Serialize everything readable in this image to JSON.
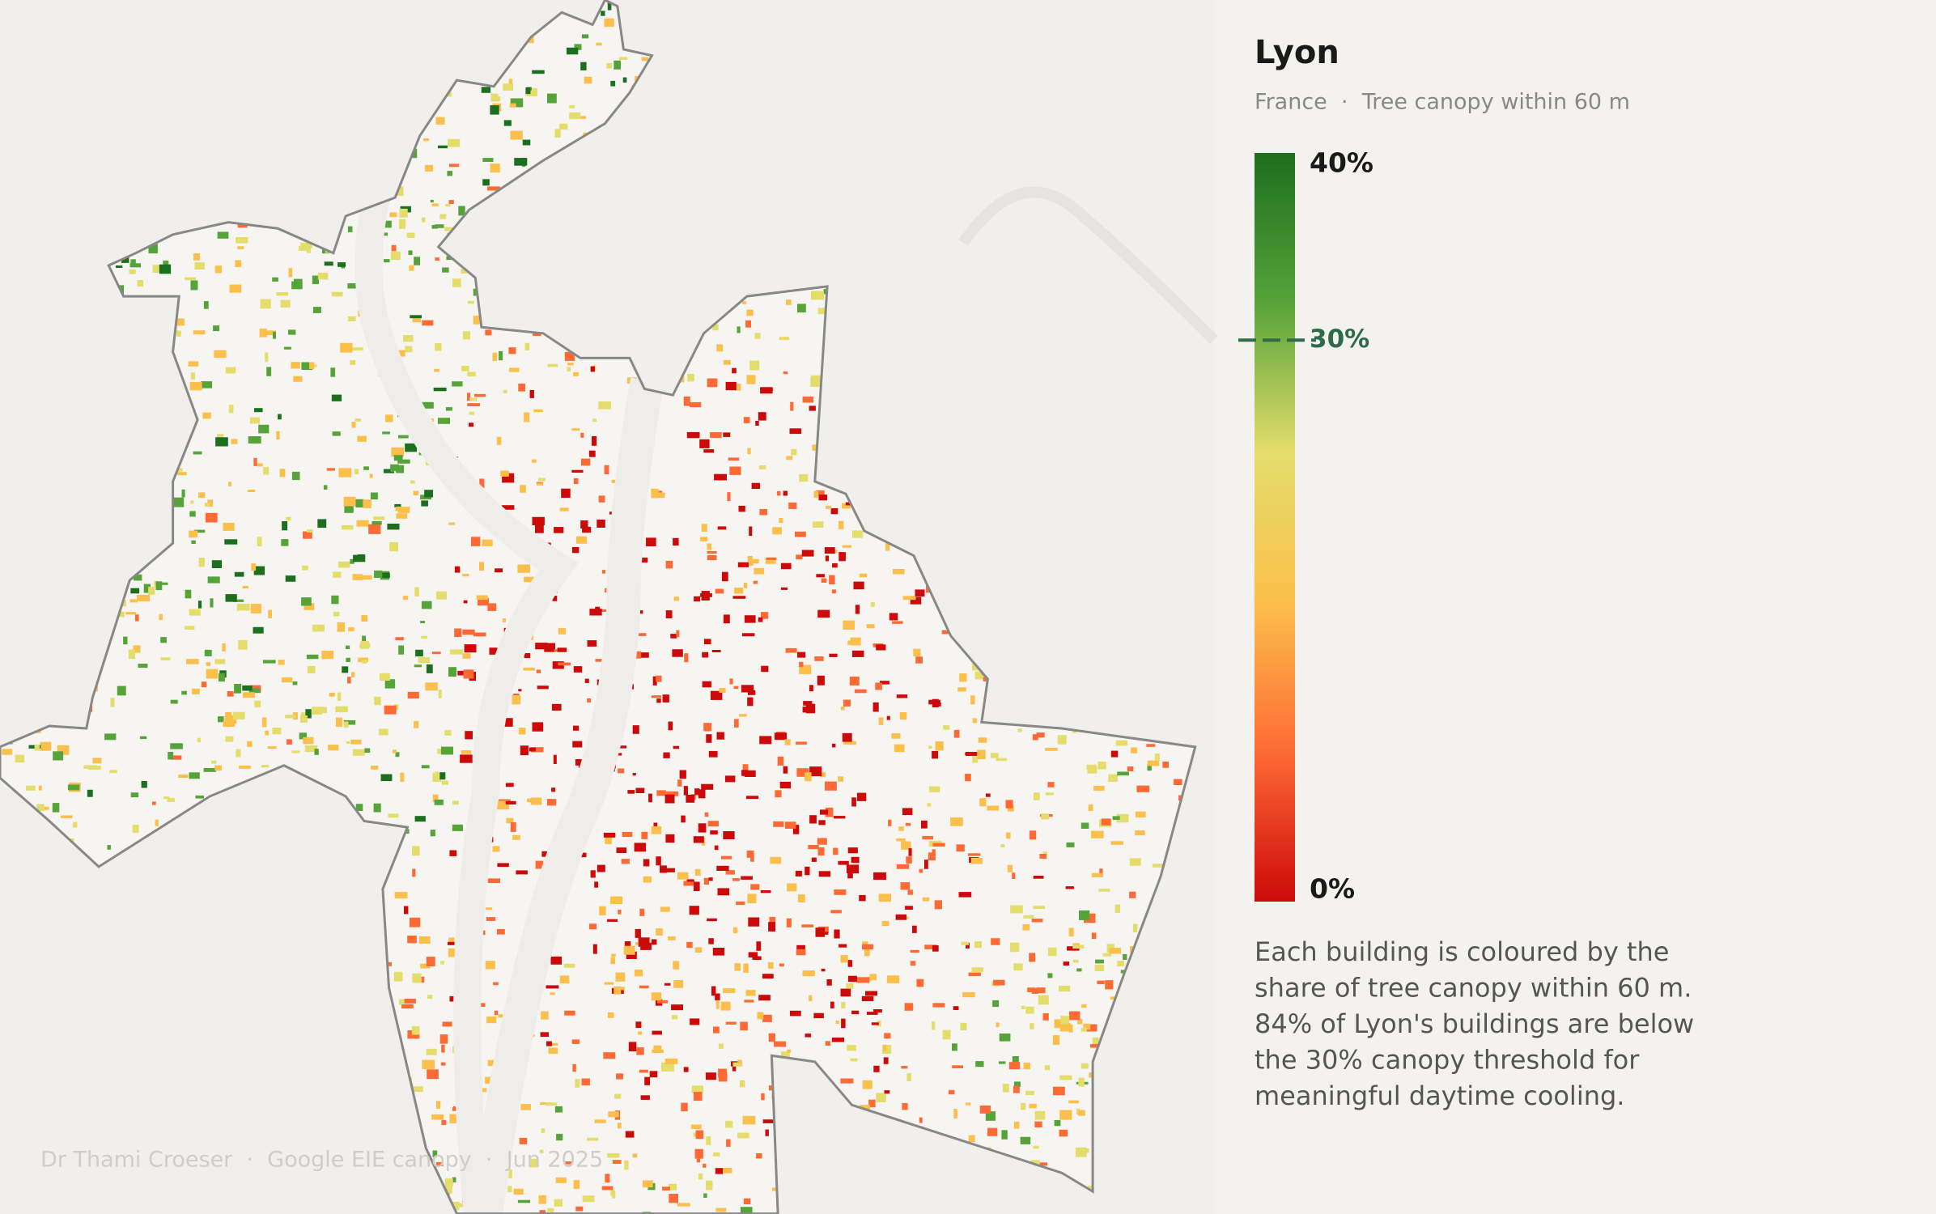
{
  "header": {
    "title": "Lyon",
    "subtitle": "France  ·  Tree canopy within 60 m"
  },
  "legend": {
    "lim": [
      0,
      40
    ],
    "ticks": [
      {
        "value": 40,
        "label": "40%"
      },
      {
        "value": 0,
        "label": "0%"
      }
    ],
    "threshold": {
      "value": 30,
      "label": "30%"
    },
    "colors": [
      "#cc0a0a",
      "#fe6a36",
      "#fcbf4b",
      "#e4dd6c",
      "#56a33a",
      "#1c6f1e"
    ]
  },
  "description": [
    "Each building is coloured by the",
    "share of tree canopy within 60 m.",
    "84% of Lyon's buildings are below",
    "the 30% canopy threshold for",
    "meaningful daytime cooling."
  ],
  "footer": "Dr Thami Croeser  ·  Google EIE canopy  ·  Jun 2025"
}
